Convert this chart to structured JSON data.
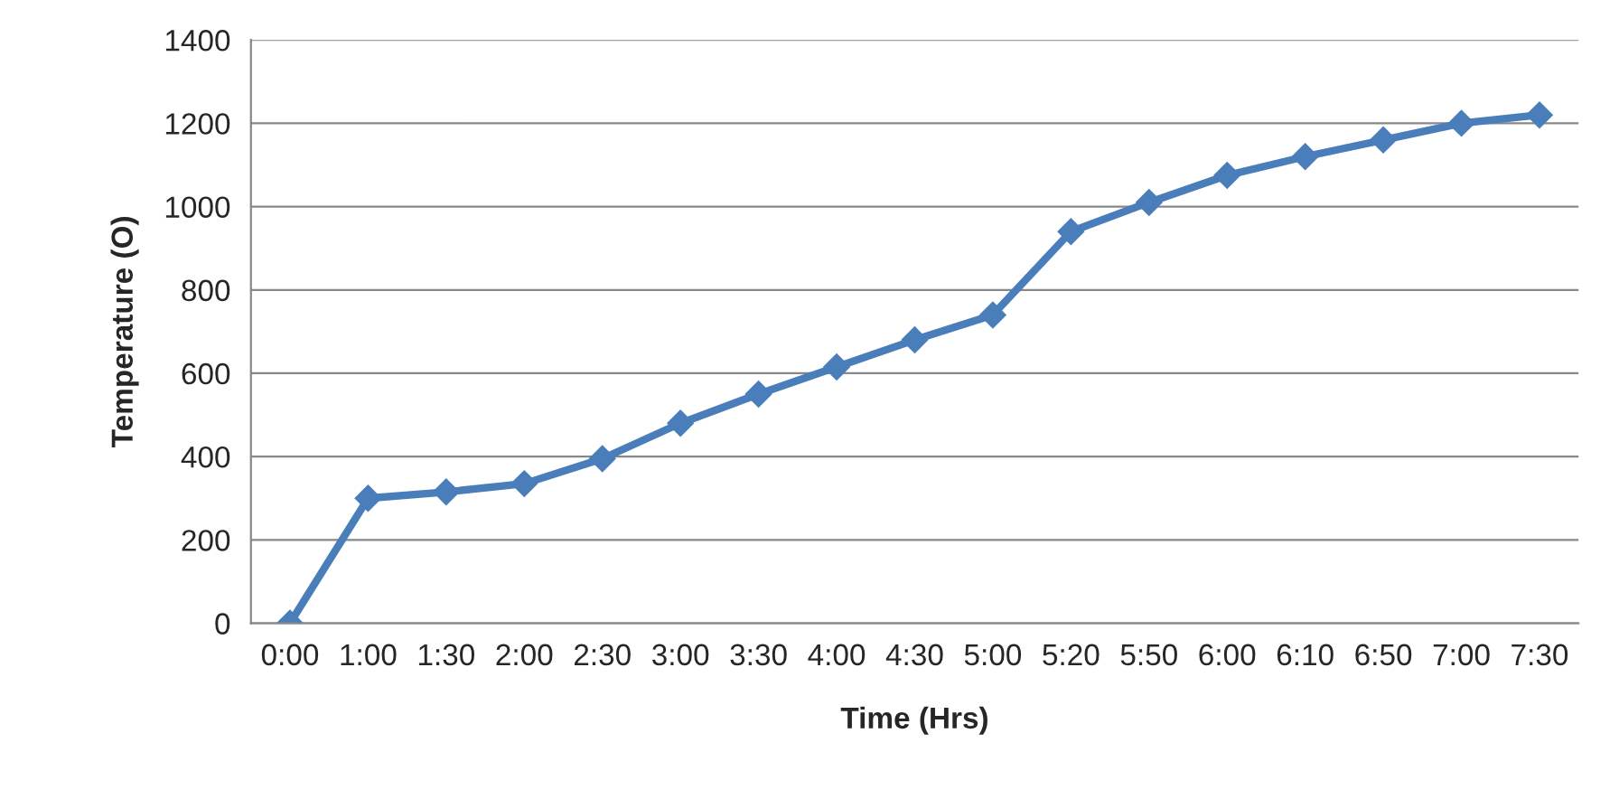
{
  "chart_data": {
    "type": "line",
    "xlabel": "Time (Hrs)",
    "ylabel": "Temperature (O)",
    "categories": [
      "0:00",
      "1:00",
      "1:30",
      "2:00",
      "2:30",
      "3:00",
      "3:30",
      "4:00",
      "4:30",
      "5:00",
      "5:20",
      "5:50",
      "6:00",
      "6:10",
      "6:50",
      "7:00",
      "7:30"
    ],
    "series": [
      {
        "color": "#4a7ebb",
        "values": [
          0,
          300,
          315,
          335,
          395,
          480,
          550,
          615,
          680,
          740,
          940,
          1010,
          1075,
          1120,
          1160,
          1200,
          1220
        ]
      }
    ],
    "ylim": [
      0,
      1400
    ],
    "yticks": [
      0,
      200,
      400,
      600,
      800,
      1000,
      1200,
      1400
    ],
    "grid": "y",
    "marker": "diamond",
    "line_style": "solid",
    "legend": false
  }
}
